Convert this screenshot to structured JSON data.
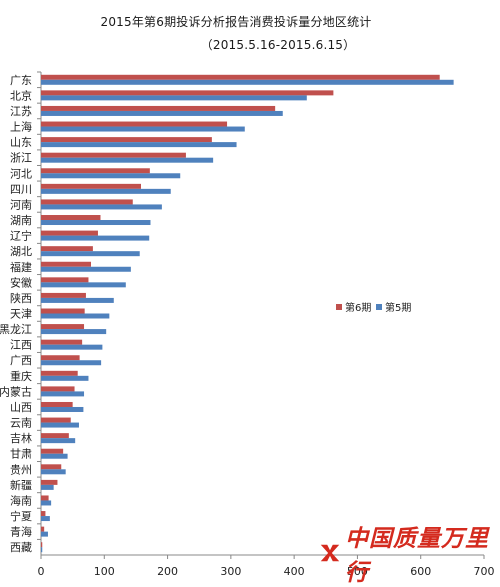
{
  "chart_data": {
    "type": "bar",
    "orientation": "horizontal",
    "title": "2015年第6期投诉分析报告消费投诉量分地区统计",
    "subtitle": "（2015.5.16-2015.6.15）",
    "categories": [
      "广东",
      "北京",
      "江苏",
      "上海",
      "山东",
      "浙江",
      "河北",
      "四川",
      "河南",
      "湖南",
      "辽宁",
      "湖北",
      "福建",
      "安徽",
      "陕西",
      "天津",
      "黑龙江",
      "江西",
      "广西",
      "重庆",
      "内蒙古",
      "山西",
      "云南",
      "吉林",
      "甘肃",
      "贵州",
      "新疆",
      "海南",
      "宁夏",
      "青海",
      "西藏"
    ],
    "series": [
      {
        "name": "第6期",
        "color": "#c0504d",
        "values": [
          630,
          462,
          370,
          294,
          270,
          229,
          172,
          158,
          145,
          94,
          90,
          82,
          79,
          75,
          71,
          69,
          68,
          65,
          61,
          58,
          53,
          50,
          47,
          44,
          35,
          32,
          26,
          12,
          7,
          5,
          2
        ]
      },
      {
        "name": "第5期",
        "color": "#4f81bd",
        "values": [
          652,
          420,
          382,
          322,
          309,
          272,
          220,
          205,
          191,
          173,
          171,
          156,
          142,
          134,
          115,
          108,
          103,
          97,
          95,
          75,
          68,
          67,
          60,
          54,
          42,
          39,
          20,
          16,
          14,
          11,
          2
        ]
      }
    ],
    "xlim": [
      0,
      700
    ],
    "xticks": [
      0,
      100,
      200,
      300,
      400,
      500,
      600,
      700
    ],
    "xlabel": "",
    "ylabel": "",
    "grid": false,
    "legend_position": "right"
  },
  "logo": {
    "text": "中国质量万里行"
  }
}
